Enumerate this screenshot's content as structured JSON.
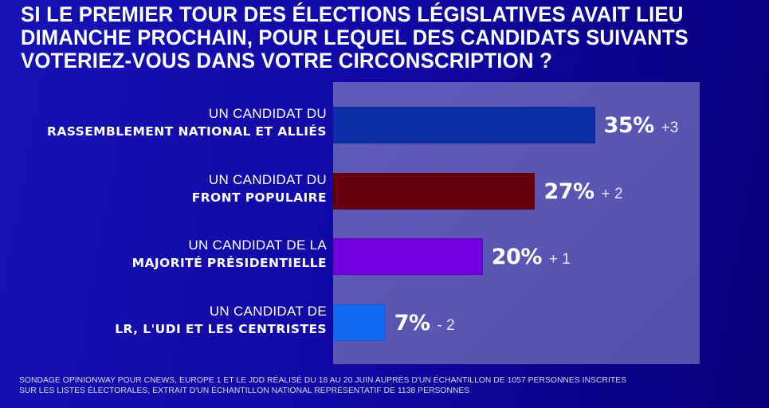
{
  "title": {
    "lines": [
      "SI LE PREMIER TOUR DES ÉLECTIONS LÉGISLATIVES AVAIT LIEU",
      "DIMANCHE PROCHAIN, POUR LEQUEL DES CANDIDATS SUIVANTS",
      "VOTERIEZ-VOUS DANS VOTRE CIRCONSCRIPTION ?"
    ]
  },
  "chart_data": {
    "type": "bar",
    "orientation": "horizontal",
    "title": "SI LE PREMIER TOUR DES ÉLECTIONS LÉGISLATIVES AVAIT LIEU DIMANCHE PROCHAIN, POUR LEQUEL DES CANDIDATS SUIVANTS VOTERIEZ-VOUS DANS VOTRE CIRCONSCRIPTION ?",
    "xlabel": "",
    "ylabel": "",
    "xlim": [
      0,
      49
    ],
    "grid": false,
    "unit": "%",
    "categories": [
      {
        "prefix": "UN CANDIDAT DU",
        "name_parts": [
          {
            "text": "RASSEMBLEMENT NATIONAL ET ALLIÉS",
            "weight": "bold"
          }
        ]
      },
      {
        "prefix": "UN CANDIDAT DU",
        "name_parts": [
          {
            "text": "FRONT POPULAIRE",
            "weight": "bold"
          }
        ]
      },
      {
        "prefix": "UN CANDIDAT DE LA",
        "name_parts": [
          {
            "text": "MAJORITÉ PRÉSIDENTIELLE",
            "weight": "bold"
          }
        ]
      },
      {
        "prefix": "UN CANDIDAT DE",
        "name_parts": [
          {
            "text": "LR, L'UDI ",
            "weight": "bold"
          },
          {
            "text": "ET LES ",
            "weight": "semi"
          },
          {
            "text": "CENTRISTES",
            "weight": "bold"
          }
        ]
      }
    ],
    "values": [
      35,
      27,
      20,
      7
    ],
    "value_labels": [
      "35%",
      "27%",
      "20%",
      "7%"
    ],
    "changes": [
      "+3",
      "+ 2",
      "+ 1",
      "- 2"
    ],
    "colors": [
      "#0b2fa6",
      "#66000e",
      "#7300df",
      "#1469f2"
    ]
  },
  "footer": {
    "lines": [
      "SONDAGE OPINIONWAY POUR CNEWS, EUROPE 1 ET LE JDD RÉALISÉ DU 18 AU 20 JUIN AUPRÈS D'UN ÉCHANTILLON DE 1057 PERSONNES INSCRITES",
      "SUR LES LISTES ÉLECTORALES, EXTRAIT D'UN ÉCHANTILLON NATIONAL REPRÉSENTATIF DE 1138 PERSONNES"
    ]
  }
}
